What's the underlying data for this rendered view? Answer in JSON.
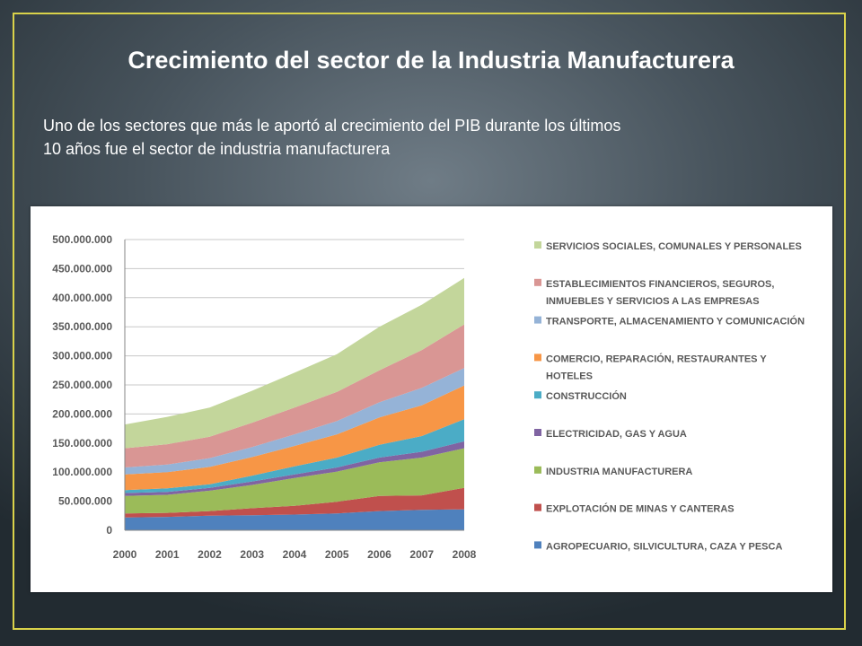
{
  "slide": {
    "title": "Crecimiento del sector de la Industria Manufacturera",
    "subtitle_line1": "Uno de los sectores que más le aportó al crecimiento del PIB durante los últimos",
    "subtitle_line2": "10 años fue el sector de industria manufacturera",
    "frame_color": "#d9d24a"
  },
  "chart_data": {
    "type": "area",
    "stacked": true,
    "title": "",
    "xlabel": "",
    "ylabel": "",
    "x": [
      "2000",
      "2001",
      "2002",
      "2003",
      "2004",
      "2005",
      "2006",
      "2007",
      "2008"
    ],
    "ylim": [
      0,
      500000000
    ],
    "yticks": [
      0,
      50000000,
      100000000,
      150000000,
      200000000,
      250000000,
      300000000,
      350000000,
      400000000,
      450000000,
      500000000
    ],
    "ytick_labels": [
      "0",
      "50.000.000",
      "100.000.000",
      "150.000.000",
      "200.000.000",
      "250.000.000",
      "300.000.000",
      "350.000.000",
      "400.000.000",
      "450.000.000",
      "500.000.000"
    ],
    "grid": true,
    "legend_position": "right",
    "series": [
      {
        "name": "AGROPECUARIO, SILVICULTURA, CAZA Y PESCA",
        "color": "#4f81bd",
        "values": [
          22000000,
          23000000,
          25000000,
          26000000,
          27000000,
          29000000,
          33000000,
          35000000,
          36000000
        ]
      },
      {
        "name": "EXPLOTACIÓN DE MINAS Y CANTERAS",
        "color": "#c0504d",
        "values": [
          7000000,
          7000000,
          8000000,
          12000000,
          15000000,
          20000000,
          26000000,
          25000000,
          37000000
        ]
      },
      {
        "name": "INDUSTRIA MANUFACTURERA",
        "color": "#9bbb59",
        "values": [
          30000000,
          31000000,
          35000000,
          40000000,
          48000000,
          52000000,
          58000000,
          65000000,
          68000000
        ]
      },
      {
        "name": "ELECTRICIDAD, GAS Y AGUA",
        "color": "#8064a2",
        "values": [
          5000000,
          5000000,
          5000000,
          6000000,
          6000000,
          7000000,
          8000000,
          10000000,
          12000000
        ]
      },
      {
        "name": "CONSTRUCCIÓN",
        "color": "#4bacc6",
        "values": [
          5000000,
          6000000,
          6000000,
          10000000,
          14000000,
          17000000,
          22000000,
          27000000,
          38000000
        ]
      },
      {
        "name": "COMERCIO, REPARACIÓN, RESTAURANTES Y HOTELES",
        "color": "#f79646",
        "values": [
          27000000,
          28000000,
          30000000,
          32000000,
          35000000,
          40000000,
          47000000,
          53000000,
          58000000
        ]
      },
      {
        "name": "TRANSPORTE, ALMACENAMIENTO Y COMUNICACIÓN",
        "color": "#95b3d7",
        "values": [
          12000000,
          13000000,
          15000000,
          17000000,
          20000000,
          23000000,
          26000000,
          30000000,
          30000000
        ]
      },
      {
        "name": "ESTABLECIMIENTOS FINANCIEROS, SEGUROS, INMUEBLES Y SERVICIOS A LAS EMPRESAS",
        "color": "#d99694",
        "values": [
          33000000,
          35000000,
          37000000,
          42000000,
          46000000,
          50000000,
          55000000,
          65000000,
          75000000
        ]
      },
      {
        "name": "SERVICIOS SOCIALES, COMUNALES Y PERSONALES",
        "color": "#c3d69b",
        "values": [
          41000000,
          47000000,
          50000000,
          55000000,
          60000000,
          65000000,
          75000000,
          78000000,
          80000000
        ]
      }
    ]
  }
}
